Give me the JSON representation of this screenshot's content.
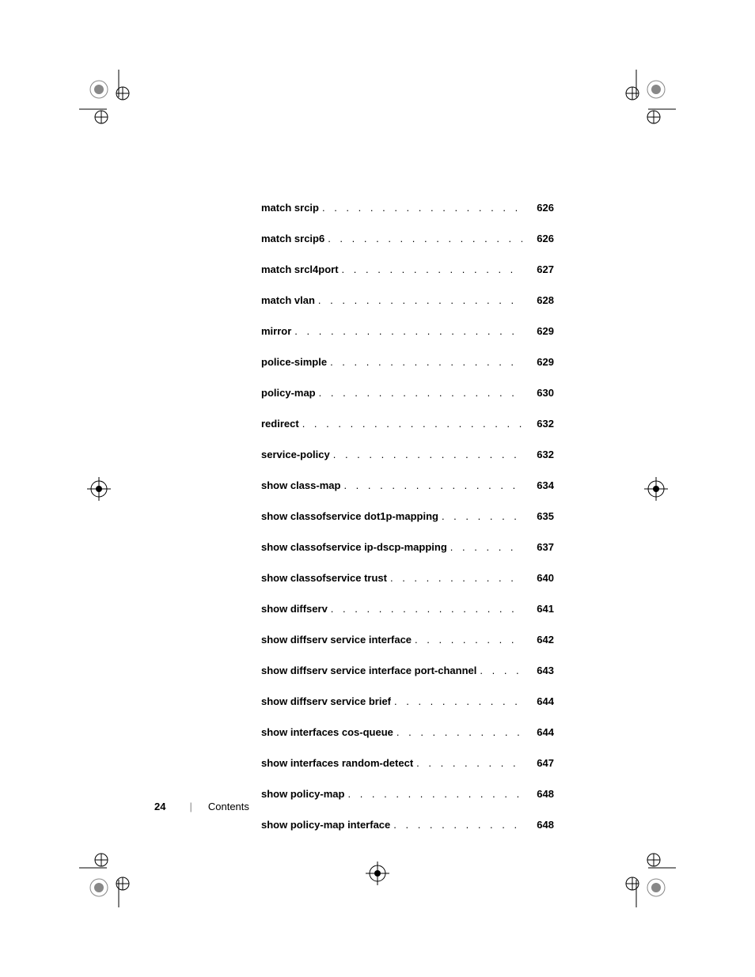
{
  "toc": [
    {
      "label": "match srcip",
      "page": "626"
    },
    {
      "label": "match srcip6",
      "page": "626"
    },
    {
      "label": "match srcl4port",
      "page": "627"
    },
    {
      "label": "match vlan",
      "page": "628"
    },
    {
      "label": "mirror",
      "page": "629"
    },
    {
      "label": "police-simple",
      "page": "629"
    },
    {
      "label": "policy-map",
      "page": "630"
    },
    {
      "label": "redirect",
      "page": "632"
    },
    {
      "label": "service-policy",
      "page": "632"
    },
    {
      "label": "show class-map",
      "page": "634"
    },
    {
      "label": "show classofservice dot1p-mapping",
      "page": "635"
    },
    {
      "label": "show classofservice ip-dscp-mapping",
      "page": "637"
    },
    {
      "label": "show classofservice trust",
      "page": "640"
    },
    {
      "label": "show diffserv",
      "page": "641"
    },
    {
      "label": "show diffserv service interface",
      "page": "642"
    },
    {
      "label": "show diffserv service interface port-channel",
      "page": "643"
    },
    {
      "label": "show diffserv service brief",
      "page": "644"
    },
    {
      "label": "show interfaces cos-queue",
      "page": "644"
    },
    {
      "label": "show interfaces random-detect",
      "page": "647"
    },
    {
      "label": "show policy-map",
      "page": "648"
    },
    {
      "label": "show policy-map interface",
      "page": "648"
    }
  ],
  "footer": {
    "page_number": "24",
    "separator": "|",
    "section": "Contents"
  },
  "dots": ".  .  .  .  .  .  .  .  .  .  .  .  .  .  .  .  .  .  .  .  .  .  .  .  .  .  .  .  .  .  .  .  .  .  .  .  .  .  .  .  .  .  .  .  .  .  .  .  .  .  ."
}
